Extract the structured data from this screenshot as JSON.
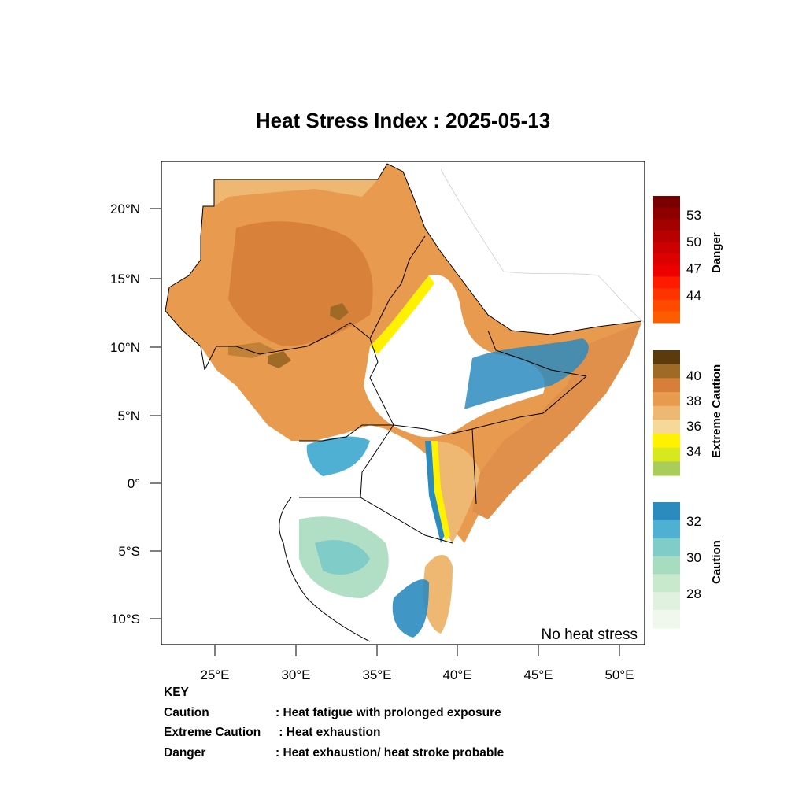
{
  "title": "Heat Stress Index : 2025-05-13",
  "lat_labels": [
    "20°N",
    "15°N",
    "10°N",
    "5°N",
    "0°",
    "5°S",
    "10°S"
  ],
  "lon_labels": [
    "25°E",
    "30°E",
    "35°E",
    "40°E",
    "45°E",
    "50°E"
  ],
  "no_heat_label": "No heat stress",
  "colorbars": [
    {
      "title": "Danger",
      "ticks": [
        "53",
        "50",
        "47",
        "44"
      ],
      "colors": [
        "#7a0000",
        "#8e0000",
        "#a30000",
        "#b80000",
        "#cc0000",
        "#de0000",
        "#ef0000",
        "#ff1a00",
        "#ff3300",
        "#ff4a00",
        "#ff5c00"
      ]
    },
    {
      "title": "Extreme Caution",
      "ticks": [
        "40",
        "38",
        "36",
        "34"
      ],
      "colors": [
        "#5c3a0e",
        "#9e6a26",
        "#d67e3a",
        "#e89a4e",
        "#efb872",
        "#f6d89a",
        "#fff100",
        "#d8e81e",
        "#a9cc5a"
      ]
    },
    {
      "title": "Caution",
      "ticks": [
        "32",
        "30",
        "28"
      ],
      "colors": [
        "#2b8bbf",
        "#4fb0d4",
        "#7fccc9",
        "#a8dcc0",
        "#c9e9cd",
        "#e0f2df",
        "#f0f8ee"
      ]
    }
  ],
  "legend_key": {
    "heading": "KEY",
    "rows": [
      {
        "term": "Caution",
        "desc": ": Heat fatigue with prolonged exposure"
      },
      {
        "term": "Extreme Caution",
        "desc": " : Heat exhaustion"
      },
      {
        "term": "Danger",
        "desc": ": Heat exhaustion/ heat stroke probable"
      }
    ]
  }
}
